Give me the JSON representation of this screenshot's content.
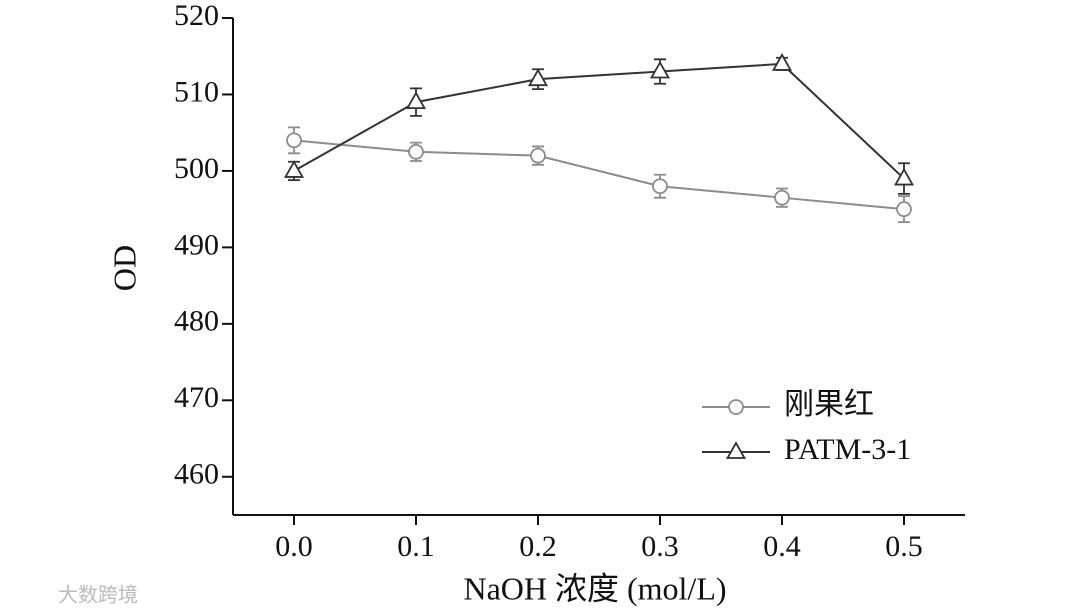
{
  "chart_data": {
    "type": "line",
    "x_label": "NaOH 浓度 (mol/L)",
    "y_label": "OD",
    "x": [
      0,
      0.1,
      0.2,
      0.3,
      0.4,
      0.5
    ],
    "series": [
      {
        "name": "刚果红",
        "color": "#8c8c8c",
        "marker": "circle",
        "values": [
          504,
          502.5,
          502,
          498,
          496.5,
          495
        ],
        "errors": [
          1.7,
          1.2,
          1.2,
          1.5,
          1.2,
          1.7
        ]
      },
      {
        "name": "PATM-3-1",
        "color": "#333333",
        "marker": "triangle",
        "values": [
          500,
          509,
          512,
          513,
          514,
          499
        ],
        "errors": [
          1.2,
          1.8,
          1.3,
          1.6,
          0.8,
          2
        ]
      }
    ],
    "xlim": [
      -0.05,
      0.55
    ],
    "xticks": [
      {
        "value": 0,
        "label": "0.0"
      },
      0.1,
      0.2,
      0.3,
      0.4,
      0.5
    ],
    "ylim": [
      455,
      520
    ],
    "yticks": [
      460,
      470,
      480,
      490,
      500,
      510,
      520
    ],
    "legend": "lower right",
    "watermark": "大数跨境"
  }
}
